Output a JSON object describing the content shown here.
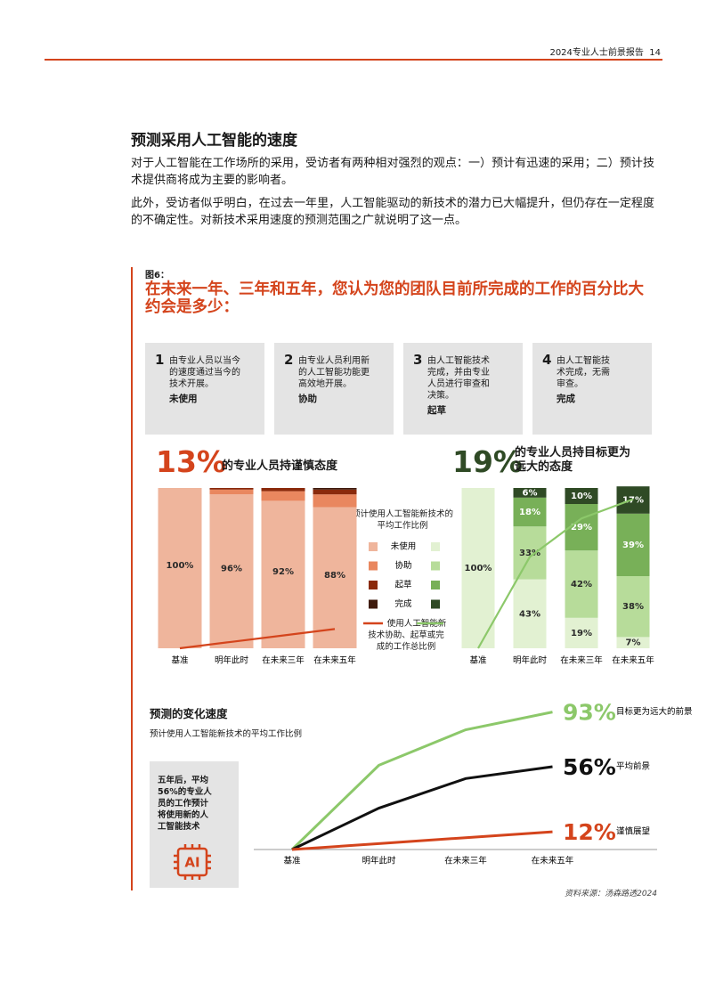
{
  "header": {
    "report": "2024专业人士前景报告",
    "page": "14"
  },
  "section": {
    "title": "预测采用人工智能的速度",
    "paragraphs": [
      "对于人工智能在工作场所的采用，受访者有两种相对强烈的观点：一）预计有迅速的采用；二）预计技术提供商将成为主要的影响者。",
      "此外，受访者似乎明白，在过去一年里，人工智能驱动的新技术的潜力已大幅提升，但仍存在一定程度的不确定性。对新技术采用速度的预测范围之广就说明了这一点。"
    ]
  },
  "figure": {
    "label": "图6：",
    "question": "在未来一年、三年和五年，您认为您的团队目前所完成的工作的百分比大约会是多少：",
    "roles": [
      {
        "number": "1",
        "description": "由专业人员以当今的速度通过当今的技术开展。",
        "name": "未使用"
      },
      {
        "number": "2",
        "description": "由专业人员利用新的人工智能功能更高效地开展。",
        "name": "协助"
      },
      {
        "number": "3",
        "description": "由人工智能技术完成，并由专业人员进行审查和决策。",
        "name": "起草"
      },
      {
        "number": "4",
        "description": "由人工智能技术完成，无需审查。",
        "name": "完成"
      }
    ],
    "cautious": {
      "stat": "13%",
      "text": "的专业人员持谨慎态度"
    },
    "ambitious": {
      "stat": "19%",
      "text": "的专业人员持目标更为远大的态度"
    },
    "legend": {
      "title": "预计使用人工智能新技术的平均工作比例",
      "items": [
        "未使用",
        "协助",
        "起草",
        "完成"
      ],
      "line_label": "使用人工智能新技术协助、起草或完成的工作总比例"
    },
    "charts": [
      {
        "type": "bar",
        "stacked": true,
        "ylim": [
          0,
          100
        ],
        "categories": [
          "基准",
          "明年此时",
          "在未来三年",
          "在未来五年"
        ],
        "series": [
          {
            "color": "#efb59c",
            "values": [
              100,
              96,
              92,
              88
            ],
            "value_labels": [
              "100%",
              "96%",
              "92%",
              "88%"
            ]
          },
          {
            "color": "#e9875f",
            "values": [
              0,
              3,
              6,
              8
            ],
            "value_labels": [
              null,
              null,
              null,
              null
            ]
          },
          {
            "color": "#8a2a0c",
            "values": [
              0,
              1,
              2,
              3
            ],
            "value_labels": [
              null,
              null,
              null,
              null
            ]
          },
          {
            "color": "#3f1b0d",
            "values": [
              0,
              0,
              0,
              1
            ],
            "value_labels": [
              null,
              null,
              null,
              null
            ]
          }
        ],
        "line": {
          "color": "#d4441c",
          "values": [
            0,
            4,
            8,
            12
          ]
        }
      },
      {
        "type": "bar",
        "stacked": true,
        "ylim": [
          0,
          100
        ],
        "categories": [
          "基准",
          "明年此时",
          "在未来三年",
          "在未来五年"
        ],
        "series": [
          {
            "color": "#e2f1d2",
            "values": [
              100,
              43,
              19,
              7
            ],
            "value_labels": [
              "100%",
              "43%",
              "19%",
              "7%"
            ]
          },
          {
            "color": "#b7dc9a",
            "values": [
              0,
              33,
              42,
              38
            ],
            "value_labels": [
              null,
              "33%",
              "42%",
              "38%"
            ]
          },
          {
            "color": "#78b058",
            "values": [
              0,
              18,
              29,
              39
            ],
            "value_labels": [
              null,
              "18%",
              "29%",
              "39%"
            ]
          },
          {
            "color": "#2f4a25",
            "values": [
              0,
              6,
              10,
              17
            ],
            "value_labels": [
              null,
              "6%",
              "10%",
              "17%"
            ]
          }
        ],
        "line": {
          "color": "#8cc86a",
          "values": [
            0,
            57,
            81,
            93
          ]
        }
      }
    ],
    "speed_chart": {
      "type": "line",
      "title": "预测的变化速度",
      "subtitle": "预计使用人工智能新技术的平均工作比例",
      "ylim": [
        0,
        100
      ],
      "categories": [
        "基准",
        "明年此时",
        "在未来三年",
        "在未来五年"
      ],
      "series": [
        {
          "name": "目标更为远大的前景",
          "color": "#8cc86a",
          "values": [
            0,
            57,
            81,
            93
          ],
          "value_labels": [
            null,
            null,
            null,
            "93%"
          ]
        },
        {
          "name": "平均前景",
          "color": "#111111",
          "values": [
            0,
            28,
            48,
            56
          ],
          "value_labels": [
            null,
            null,
            null,
            "56%"
          ]
        },
        {
          "name": "谨慎展望",
          "color": "#d4441c",
          "values": [
            0,
            4,
            8,
            12
          ],
          "value_labels": [
            null,
            null,
            null,
            "12%"
          ]
        }
      ]
    },
    "callout": "五年后，平均56%的专业人员的工作预计将使用新的人工智能技术",
    "icon_text": "AI",
    "source": "资料来源：汤森路透2024"
  }
}
